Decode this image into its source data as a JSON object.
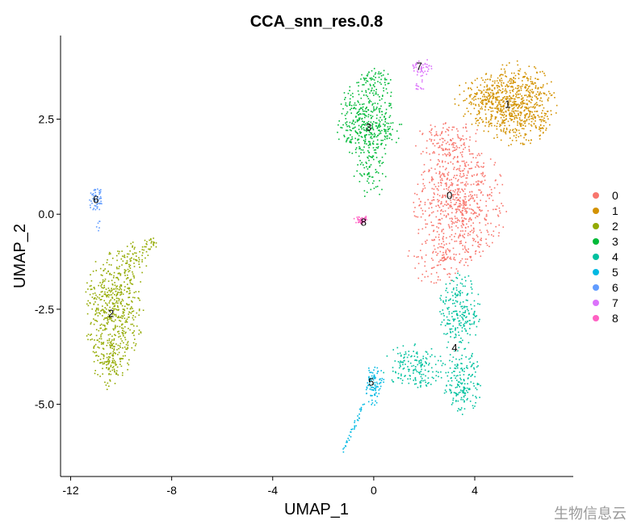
{
  "chart_data": {
    "type": "scatter",
    "title": "CCA_snn_res.0.8",
    "xlabel": "UMAP_1",
    "ylabel": "UMAP_2",
    "xlim": [
      -12.4,
      7.9
    ],
    "ylim": [
      -6.9,
      4.7
    ],
    "x_ticks": [
      -12,
      -8,
      -4,
      0,
      4
    ],
    "x_tick_labels": [
      "-12",
      "-8",
      "-4",
      "0",
      "4"
    ],
    "y_ticks": [
      -5.0,
      -2.5,
      0.0,
      2.5
    ],
    "y_tick_labels": [
      "-5.0",
      "-2.5",
      "0.0",
      "2.5"
    ],
    "grid": false,
    "legend_position": "right",
    "series": [
      {
        "name": "0",
        "color": "#F8766D",
        "label_pos": [
          3.0,
          0.5
        ],
        "regions": [
          {
            "cx": 3.4,
            "cy": 0.3,
            "rx": 1.9,
            "ry": 1.6,
            "n": 650
          },
          {
            "cx": 3.0,
            "cy": 1.9,
            "rx": 1.4,
            "ry": 0.6,
            "n": 140
          },
          {
            "cx": 2.6,
            "cy": -1.2,
            "rx": 1.3,
            "ry": 0.7,
            "n": 110
          }
        ]
      },
      {
        "name": "1",
        "color": "#D39200",
        "label_pos": [
          5.3,
          2.9
        ],
        "regions": [
          {
            "cx": 5.6,
            "cy": 2.9,
            "rx": 1.7,
            "ry": 1.15,
            "n": 720
          },
          {
            "cx": 4.2,
            "cy": 3.0,
            "rx": 1.0,
            "ry": 0.7,
            "n": 120
          }
        ]
      },
      {
        "name": "2",
        "color": "#93AA00",
        "label_pos": [
          -10.4,
          -2.6
        ],
        "regions": [
          {
            "cx": -10.3,
            "cy": -2.5,
            "rx": 1.2,
            "ry": 1.6,
            "n": 520
          },
          {
            "cx": -10.4,
            "cy": -4.0,
            "rx": 0.8,
            "ry": 0.7,
            "n": 90
          },
          {
            "cx": -9.6,
            "cy": -1.2,
            "rx": 0.7,
            "ry": 0.5,
            "n": 70
          },
          {
            "cx": -8.9,
            "cy": -0.8,
            "rx": 0.3,
            "ry": 0.25,
            "n": 25
          }
        ]
      },
      {
        "name": "3",
        "color": "#00BA38",
        "label_pos": [
          -0.2,
          2.3
        ],
        "regions": [
          {
            "cx": -0.2,
            "cy": 2.4,
            "rx": 1.3,
            "ry": 1.2,
            "n": 420
          },
          {
            "cx": -0.1,
            "cy": 1.0,
            "rx": 0.7,
            "ry": 0.6,
            "n": 50
          },
          {
            "cx": 0.0,
            "cy": 3.5,
            "rx": 0.7,
            "ry": 0.35,
            "n": 60
          }
        ]
      },
      {
        "name": "4",
        "color": "#00C19F",
        "label_pos": [
          3.2,
          -3.5
        ],
        "regions": [
          {
            "cx": 3.4,
            "cy": -2.6,
            "rx": 0.9,
            "ry": 1.1,
            "n": 220
          },
          {
            "cx": 3.5,
            "cy": -4.4,
            "rx": 0.8,
            "ry": 0.9,
            "n": 180
          },
          {
            "cx": 1.6,
            "cy": -4.0,
            "rx": 1.3,
            "ry": 0.6,
            "n": 170
          }
        ]
      },
      {
        "name": "5",
        "color": "#00B9E3",
        "label_pos": [
          -0.1,
          -4.4
        ],
        "regions": [
          {
            "cx": 0.0,
            "cy": -4.5,
            "rx": 0.45,
            "ry": 0.6,
            "n": 90
          }
        ],
        "trail": {
          "x0": -1.2,
          "y0": -6.2,
          "x1": -0.4,
          "y1": -5.0,
          "n": 35
        }
      },
      {
        "name": "6",
        "color": "#619CFF",
        "label_pos": [
          -11.0,
          0.4
        ],
        "regions": [
          {
            "cx": -11.0,
            "cy": 0.4,
            "rx": 0.28,
            "ry": 0.35,
            "n": 55
          },
          {
            "cx": -10.9,
            "cy": -0.3,
            "rx": 0.1,
            "ry": 0.15,
            "n": 6
          }
        ]
      },
      {
        "name": "7",
        "color": "#DB72FB",
        "label_pos": [
          1.8,
          3.9
        ],
        "regions": [
          {
            "cx": 1.9,
            "cy": 3.85,
            "rx": 0.45,
            "ry": 0.25,
            "n": 45
          },
          {
            "cx": 1.8,
            "cy": 3.4,
            "rx": 0.2,
            "ry": 0.3,
            "n": 12
          }
        ]
      },
      {
        "name": "8",
        "color": "#FF61C3",
        "label_pos": [
          -0.4,
          -0.2
        ],
        "regions": [
          {
            "cx": -0.5,
            "cy": -0.15,
            "rx": 0.3,
            "ry": 0.12,
            "n": 45
          }
        ]
      }
    ]
  },
  "watermark": "生物信息云"
}
